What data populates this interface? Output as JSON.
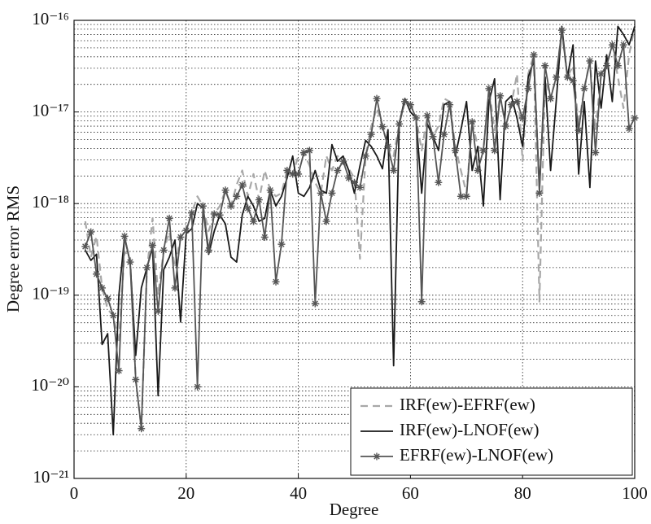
{
  "chart_data": {
    "type": "line",
    "xlabel": "Degree",
    "ylabel": "Degree error RMS",
    "yscale": "log",
    "grid": true,
    "minor_grid": true,
    "legend": "lower right",
    "xlim": [
      0,
      100
    ],
    "xticks": [
      0,
      20,
      40,
      60,
      80,
      100
    ],
    "ylim": [
      1e-21,
      1e-16
    ],
    "yticks": [
      {
        "value": 1e-21,
        "label": "10⁻²¹"
      },
      {
        "value": 1e-20,
        "label": "10⁻²⁰"
      },
      {
        "value": 1e-19,
        "label": "10⁻¹⁹"
      },
      {
        "value": 1e-18,
        "label": "10⁻¹⁸"
      },
      {
        "value": 1e-17,
        "label": "10⁻¹⁷"
      },
      {
        "value": 1e-16,
        "label": "10⁻¹⁶"
      }
    ],
    "yticks_minor": [
      2e-21,
      3e-21,
      4e-21,
      5e-21,
      6e-21,
      7e-21,
      8e-21,
      9e-21,
      2e-20,
      3e-20,
      4e-20,
      5e-20,
      6e-20,
      7e-20,
      8e-20,
      9e-20,
      2e-19,
      3e-19,
      4e-19,
      5e-19,
      6e-19,
      7e-19,
      8e-19,
      9e-19,
      2e-18,
      3e-18,
      4e-18,
      5e-18,
      6e-18,
      7e-18,
      8e-18,
      9e-18,
      2e-17,
      3e-17,
      4e-17,
      5e-17,
      6e-17,
      7e-17,
      8e-17,
      9e-17
    ],
    "x": [
      2,
      3,
      4,
      5,
      6,
      7,
      8,
      9,
      10,
      11,
      12,
      13,
      14,
      15,
      16,
      17,
      18,
      19,
      20,
      21,
      22,
      23,
      24,
      25,
      26,
      27,
      28,
      29,
      30,
      31,
      32,
      33,
      34,
      35,
      36,
      37,
      38,
      39,
      40,
      41,
      42,
      43,
      44,
      45,
      46,
      47,
      48,
      49,
      50,
      51,
      52,
      53,
      54,
      55,
      56,
      57,
      58,
      59,
      60,
      61,
      62,
      63,
      64,
      65,
      66,
      67,
      68,
      69,
      70,
      71,
      72,
      73,
      74,
      75,
      76,
      77,
      78,
      79,
      80,
      81,
      82,
      83,
      84,
      85,
      86,
      87,
      88,
      89,
      90,
      91,
      92,
      93,
      94,
      95,
      96,
      97,
      98,
      99,
      100
    ],
    "series": [
      {
        "name": "IRF(ew)-EFRF(ew)",
        "color": "#a8a8a8",
        "dash": true,
        "marker": null,
        "values": [
          6.4e-19,
          2.6e-19,
          4.4e-19,
          1.2e-19,
          7e-20,
          6e-20,
          3e-20,
          3e-19,
          2.6e-19,
          1.2e-20,
          3.5e-21,
          1.9e-19,
          6.9e-19,
          1e-19,
          3.1e-19,
          4.9e-19,
          2e-19,
          4.3e-19,
          5.1e-19,
          7.9e-19,
          1.2e-18,
          9.4e-19,
          5e-19,
          7.7e-19,
          9.4e-19,
          1.4e-18,
          9.4e-19,
          1.6e-18,
          2.3e-18,
          1.2e-18,
          2.1e-18,
          1.1e-18,
          2.3e-18,
          1.4e-18,
          1.2e-18,
          1.3e-18,
          2.3e-18,
          2.1e-18,
          3.3e-18,
          3.6e-18,
          2.6e-18,
          1.7e-18,
          1.3e-18,
          3.3e-18,
          2.3e-18,
          3.3e-18,
          2.9e-18,
          2.4e-18,
          1.9e-18,
          2.5e-19,
          3.3e-18,
          6.9e-18,
          1.1e-17,
          6.9e-18,
          4.2e-18,
          3.3e-18,
          7.4e-18,
          1.3e-17,
          1.2e-17,
          8.6e-18,
          3.8e-18,
          9.1e-18,
          5.4e-18,
          7e-18,
          1.4e-17,
          1.3e-17,
          4.2e-18,
          2.3e-18,
          1.3e-18,
          7.8e-18,
          4.2e-18,
          3.8e-18,
          1.8e-17,
          6.3e-18,
          1.5e-17,
          7e-18,
          1.2e-17,
          2.6e-17,
          2.9e-18,
          2.6e-17,
          4.2e-17,
          8.5e-20,
          2.4e-17,
          1.4e-17,
          2.4e-17,
          7.8e-17,
          2.4e-17,
          3.2e-17,
          7e-18,
          1.8e-17,
          3.6e-17,
          6.3e-18,
          2.6e-17,
          3.2e-17,
          5.4e-17,
          2.4e-17,
          1.1e-17,
          4.2e-17,
          8.6e-17
        ]
      },
      {
        "name": "IRF(ew)-LNOF(ew)",
        "color": "#1a1a1a",
        "dash": false,
        "marker": null,
        "values": [
          3.1e-19,
          2.4e-19,
          2.8e-19,
          2.9e-20,
          3.8e-20,
          3e-21,
          1e-19,
          4.3e-19,
          2.3e-19,
          2.2e-20,
          1.2e-19,
          2e-19,
          3.3e-19,
          8e-21,
          1.9e-19,
          2.6e-19,
          4e-19,
          5.1e-20,
          4.7e-19,
          5.3e-19,
          1e-18,
          8.9e-19,
          2.8e-19,
          5e-19,
          7.5e-19,
          6e-19,
          2.6e-19,
          2.3e-19,
          7.5e-19,
          1.2e-18,
          9.4e-19,
          6.4e-19,
          6.9e-19,
          1.4e-18,
          9.4e-19,
          1.2e-18,
          1.9e-18,
          3.3e-18,
          1.3e-18,
          1.2e-18,
          1.5e-18,
          2.3e-18,
          1.4e-18,
          1.3e-18,
          4.4e-18,
          2.9e-18,
          3.3e-18,
          2.3e-18,
          1.3e-18,
          2.6e-18,
          4.9e-18,
          4.2e-18,
          3.3e-18,
          2.4e-18,
          6.4e-18,
          1.7e-20,
          7.4e-18,
          1.4e-17,
          1e-17,
          8.6e-18,
          1.3e-18,
          7.4e-18,
          5.4e-18,
          3.8e-18,
          1.2e-17,
          1.3e-17,
          3.3e-18,
          6.4e-18,
          1.3e-17,
          2.3e-18,
          4.2e-18,
          9.4e-19,
          1.3e-17,
          2.3e-17,
          1.1e-18,
          1.3e-17,
          1.5e-17,
          8.6e-18,
          4.2e-18,
          2.4e-17,
          3.6e-17,
          1.5e-18,
          2.4e-17,
          2.3e-18,
          1.3e-17,
          8.6e-17,
          2.4e-17,
          5.4e-17,
          2.1e-18,
          1.3e-17,
          1.5e-18,
          3.6e-17,
          1.1e-17,
          4.2e-17,
          1.3e-17,
          8.6e-17,
          7e-17,
          5.4e-17,
          8.6e-17
        ]
      },
      {
        "name": "EFRF(ew)-LNOF(ew)",
        "color": "#555555",
        "dash": false,
        "marker": "star",
        "values": [
          3.4e-19,
          4.9e-19,
          1.7e-19,
          1.2e-19,
          9.2e-20,
          6e-20,
          1.5e-20,
          4.4e-19,
          2.3e-19,
          1.2e-20,
          3.5e-21,
          2e-19,
          3.5e-19,
          6.7e-20,
          3.1e-19,
          6.9e-19,
          1.2e-19,
          4.3e-19,
          5.1e-19,
          7.9e-19,
          1e-20,
          9.4e-19,
          3.1e-19,
          7.7e-19,
          7.5e-19,
          1.4e-18,
          9.4e-19,
          1.2e-18,
          1.6e-18,
          8.9e-19,
          6.4e-19,
          1.1e-18,
          4.3e-19,
          1.4e-18,
          1.4e-19,
          3.6e-19,
          2.3e-18,
          2.1e-18,
          2.1e-18,
          3.6e-18,
          3.8e-18,
          8.1e-20,
          1.3e-18,
          6.4e-19,
          1.3e-18,
          2.3e-18,
          2.9e-18,
          1.9e-18,
          1.7e-18,
          1.5e-18,
          3.3e-18,
          5.7e-18,
          1.4e-17,
          6.9e-18,
          4.2e-18,
          2.3e-18,
          7.4e-18,
          1.3e-17,
          1.2e-17,
          8.6e-18,
          8.5e-20,
          9.1e-18,
          5.4e-18,
          1.7e-18,
          5.7e-18,
          1.2e-17,
          3.8e-18,
          1.2e-18,
          1.2e-18,
          7.8e-18,
          2.3e-18,
          3.8e-18,
          1.8e-17,
          3.8e-18,
          1.5e-17,
          7e-18,
          1.2e-17,
          1.3e-17,
          8.6e-18,
          1.8e-17,
          4.2e-17,
          1.3e-18,
          3.2e-17,
          1.4e-17,
          2.4e-17,
          7.8e-17,
          2.4e-17,
          2.2e-17,
          6.3e-18,
          1.8e-17,
          3.6e-17,
          3.6e-18,
          2.6e-17,
          3.2e-17,
          5.4e-17,
          3.2e-17,
          5.4e-17,
          6.6e-18,
          8.6e-18
        ]
      }
    ]
  }
}
